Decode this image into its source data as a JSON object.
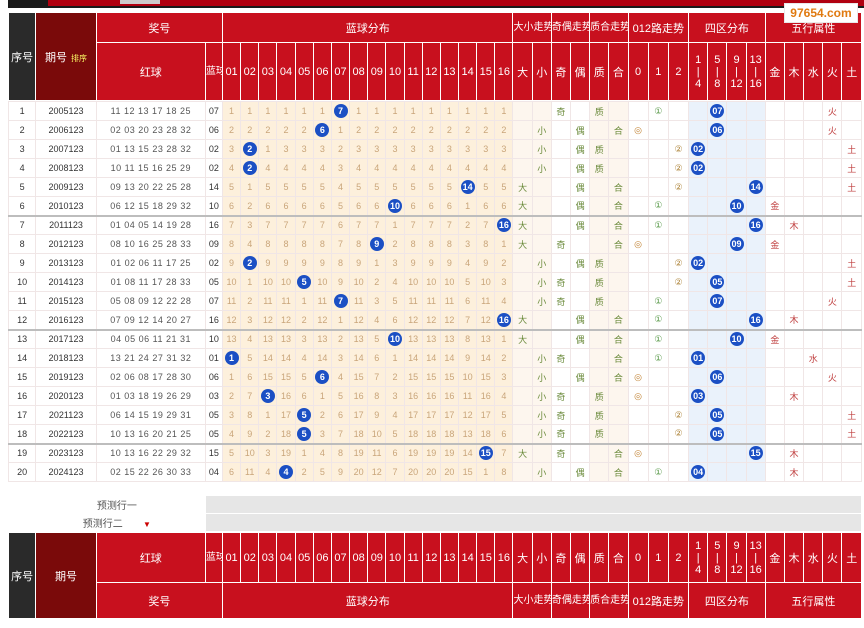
{
  "watermark": "97654.com",
  "header": {
    "seq": "序号",
    "period": "期号",
    "sort": "排序",
    "prize": "奖号",
    "red": "红球",
    "blue": "蓝球",
    "blue_dist": "蓝球分布",
    "bigsmall": "大小走势",
    "oddeven": "奇偶走势",
    "primecomp": "质合走势",
    "route012": "012路走势",
    "zone": "四区分布",
    "wuxing": "五行属性",
    "nums": [
      "01",
      "02",
      "03",
      "04",
      "05",
      "06",
      "07",
      "08",
      "09",
      "10",
      "11",
      "12",
      "13",
      "14",
      "15",
      "16"
    ],
    "dx": [
      "大",
      "小"
    ],
    "jo": [
      "奇",
      "偶"
    ],
    "zh": [
      "质",
      "合"
    ],
    "r012": [
      "0",
      "1",
      "2"
    ],
    "zones": [
      "1|4",
      "5|8",
      "9|12",
      "13|16"
    ],
    "wx": [
      "金",
      "木",
      "水",
      "火",
      "土"
    ]
  },
  "rows": [
    {
      "seq": "1",
      "period": "2005123",
      "red": "11 12 13 17 18 25",
      "blue": "07",
      "dist": [
        "1",
        "1",
        "1",
        "1",
        "1",
        "1",
        "7",
        "1",
        "1",
        "1",
        "1",
        "1",
        "1",
        "1",
        "1",
        "1"
      ],
      "dx": [
        "",
        ""
      ],
      "jo": [
        "奇",
        ""
      ],
      "zh": [
        "质",
        ""
      ],
      "r012": [
        "",
        "①",
        ""
      ],
      "zone": [
        "",
        "07",
        "",
        ""
      ],
      "wx": [
        "",
        "",
        "",
        "火",
        ""
      ]
    },
    {
      "seq": "2",
      "period": "2006123",
      "red": "02 03 20 23 28 32",
      "blue": "06",
      "dist": [
        "2",
        "2",
        "2",
        "2",
        "2",
        "6",
        "1",
        "2",
        "2",
        "2",
        "2",
        "2",
        "2",
        "2",
        "2",
        "2"
      ],
      "dx": [
        "",
        "小"
      ],
      "jo": [
        "",
        "偶"
      ],
      "zh": [
        "",
        "合"
      ],
      "r012": [
        "◎",
        "",
        ""
      ],
      "zone": [
        "",
        "06",
        "",
        ""
      ],
      "wx": [
        "",
        "",
        "",
        "火",
        ""
      ]
    },
    {
      "seq": "3",
      "period": "2007123",
      "red": "01 13 15 23 28 32",
      "blue": "02",
      "dist": [
        "3",
        "2",
        "1",
        "3",
        "3",
        "3",
        "2",
        "3",
        "3",
        "3",
        "3",
        "3",
        "3",
        "3",
        "3",
        "3"
      ],
      "dx": [
        "",
        "小"
      ],
      "jo": [
        "",
        "偶"
      ],
      "zh": [
        "质",
        ""
      ],
      "r012": [
        "",
        "",
        "②"
      ],
      "zone": [
        "02",
        "",
        "",
        ""
      ],
      "wx": [
        "",
        "",
        "",
        "",
        "土"
      ]
    },
    {
      "seq": "4",
      "period": "2008123",
      "red": "10 11 15 16 25 29",
      "blue": "02",
      "dist": [
        "4",
        "2",
        "4",
        "4",
        "4",
        "4",
        "3",
        "4",
        "4",
        "4",
        "4",
        "4",
        "4",
        "4",
        "4",
        "4"
      ],
      "dx": [
        "",
        "小"
      ],
      "jo": [
        "",
        "偶"
      ],
      "zh": [
        "质",
        ""
      ],
      "r012": [
        "",
        "",
        "②"
      ],
      "zone": [
        "02",
        "",
        "",
        ""
      ],
      "wx": [
        "",
        "",
        "",
        "",
        "土"
      ]
    },
    {
      "seq": "5",
      "period": "2009123",
      "red": "09 13 20 22 25 28",
      "blue": "14",
      "dist": [
        "5",
        "1",
        "5",
        "5",
        "5",
        "5",
        "4",
        "5",
        "5",
        "5",
        "5",
        "5",
        "5",
        "14",
        "5",
        "5"
      ],
      "dx": [
        "大",
        ""
      ],
      "jo": [
        "",
        "偶"
      ],
      "zh": [
        "",
        "合"
      ],
      "r012": [
        "",
        "",
        "②"
      ],
      "zone": [
        "",
        "",
        "",
        "14"
      ],
      "wx": [
        "",
        "",
        "",
        "",
        "土"
      ]
    },
    {
      "seq": "6",
      "period": "2010123",
      "red": "06 12 15 18 29 32",
      "blue": "10",
      "dist": [
        "6",
        "2",
        "6",
        "6",
        "6",
        "6",
        "5",
        "6",
        "6",
        "10",
        "6",
        "6",
        "6",
        "1",
        "6",
        "6"
      ],
      "dx": [
        "大",
        ""
      ],
      "jo": [
        "",
        "偶"
      ],
      "zh": [
        "",
        "合"
      ],
      "r012": [
        "",
        "①",
        ""
      ],
      "zone": [
        "",
        "",
        "10",
        ""
      ],
      "wx": [
        "金",
        "",
        "",
        "",
        ""
      ]
    },
    {
      "seq": "7",
      "period": "2011123",
      "red": "01 04 05 14 19 28",
      "blue": "16",
      "dist": [
        "7",
        "3",
        "7",
        "7",
        "7",
        "7",
        "6",
        "7",
        "7",
        "1",
        "7",
        "7",
        "7",
        "2",
        "7",
        "16"
      ],
      "dx": [
        "大",
        ""
      ],
      "jo": [
        "",
        "偶"
      ],
      "zh": [
        "",
        "合"
      ],
      "r012": [
        "",
        "①",
        ""
      ],
      "zone": [
        "",
        "",
        "",
        "16"
      ],
      "wx": [
        "",
        "木",
        "",
        "",
        ""
      ]
    },
    {
      "seq": "8",
      "period": "2012123",
      "red": "08 10 16 25 28 33",
      "blue": "09",
      "dist": [
        "8",
        "4",
        "8",
        "8",
        "8",
        "8",
        "7",
        "8",
        "9",
        "2",
        "8",
        "8",
        "8",
        "3",
        "8",
        "1"
      ],
      "dx": [
        "大",
        ""
      ],
      "jo": [
        "奇",
        ""
      ],
      "zh": [
        "",
        "合"
      ],
      "r012": [
        "◎",
        "",
        ""
      ],
      "zone": [
        "",
        "",
        "09",
        ""
      ],
      "wx": [
        "金",
        "",
        "",
        "",
        ""
      ]
    },
    {
      "seq": "9",
      "period": "2013123",
      "red": "01 02 06 11 17 25",
      "blue": "02",
      "dist": [
        "9",
        "2",
        "9",
        "9",
        "9",
        "9",
        "8",
        "9",
        "1",
        "3",
        "9",
        "9",
        "9",
        "4",
        "9",
        "2"
      ],
      "dx": [
        "",
        "小"
      ],
      "jo": [
        "",
        "偶"
      ],
      "zh": [
        "质",
        ""
      ],
      "r012": [
        "",
        "",
        "②"
      ],
      "zone": [
        "02",
        "",
        "",
        ""
      ],
      "wx": [
        "",
        "",
        "",
        "",
        "土"
      ]
    },
    {
      "seq": "10",
      "period": "2014123",
      "red": "01 08 11 17 28 33",
      "blue": "05",
      "dist": [
        "10",
        "1",
        "10",
        "10",
        "5",
        "10",
        "9",
        "10",
        "2",
        "4",
        "10",
        "10",
        "10",
        "5",
        "10",
        "3"
      ],
      "dx": [
        "",
        "小"
      ],
      "jo": [
        "奇",
        ""
      ],
      "zh": [
        "质",
        ""
      ],
      "r012": [
        "",
        "",
        "②"
      ],
      "zone": [
        "",
        "05",
        "",
        ""
      ],
      "wx": [
        "",
        "",
        "",
        "",
        "土"
      ]
    },
    {
      "seq": "11",
      "period": "2015123",
      "red": "05 08 09 12 22 28",
      "blue": "07",
      "dist": [
        "11",
        "2",
        "11",
        "11",
        "1",
        "11",
        "7",
        "11",
        "3",
        "5",
        "11",
        "11",
        "11",
        "6",
        "11",
        "4"
      ],
      "dx": [
        "",
        "小"
      ],
      "jo": [
        "奇",
        ""
      ],
      "zh": [
        "质",
        ""
      ],
      "r012": [
        "",
        "①",
        ""
      ],
      "zone": [
        "",
        "07",
        "",
        ""
      ],
      "wx": [
        "",
        "",
        "",
        "火",
        ""
      ]
    },
    {
      "seq": "12",
      "period": "2016123",
      "red": "07 09 12 14 20 27",
      "blue": "16",
      "dist": [
        "12",
        "3",
        "12",
        "12",
        "2",
        "12",
        "1",
        "12",
        "4",
        "6",
        "12",
        "12",
        "12",
        "7",
        "12",
        "16"
      ],
      "dx": [
        "大",
        ""
      ],
      "jo": [
        "",
        "偶"
      ],
      "zh": [
        "",
        "合"
      ],
      "r012": [
        "",
        "①",
        ""
      ],
      "zone": [
        "",
        "",
        "",
        "16"
      ],
      "wx": [
        "",
        "木",
        "",
        "",
        ""
      ]
    },
    {
      "seq": "13",
      "period": "2017123",
      "red": "04 05 06 11 21 31",
      "blue": "10",
      "dist": [
        "13",
        "4",
        "13",
        "13",
        "3",
        "13",
        "2",
        "13",
        "5",
        "10",
        "13",
        "13",
        "13",
        "8",
        "13",
        "1"
      ],
      "dx": [
        "大",
        ""
      ],
      "jo": [
        "",
        "偶"
      ],
      "zh": [
        "",
        "合"
      ],
      "r012": [
        "",
        "①",
        ""
      ],
      "zone": [
        "",
        "",
        "10",
        ""
      ],
      "wx": [
        "金",
        "",
        "",
        "",
        ""
      ]
    },
    {
      "seq": "14",
      "period": "2018123",
      "red": "13 21 24 27 31 32",
      "blue": "01",
      "dist": [
        "1",
        "5",
        "14",
        "14",
        "4",
        "14",
        "3",
        "14",
        "6",
        "1",
        "14",
        "14",
        "14",
        "9",
        "14",
        "2"
      ],
      "dx": [
        "",
        "小"
      ],
      "jo": [
        "奇",
        ""
      ],
      "zh": [
        "",
        "合"
      ],
      "r012": [
        "",
        "①",
        ""
      ],
      "zone": [
        "01",
        "",
        "",
        ""
      ],
      "wx": [
        "",
        "",
        "水",
        "",
        ""
      ]
    },
    {
      "seq": "15",
      "period": "2019123",
      "red": "02 06 08 17 28 30",
      "blue": "06",
      "dist": [
        "1",
        "6",
        "15",
        "15",
        "5",
        "6",
        "4",
        "15",
        "7",
        "2",
        "15",
        "15",
        "15",
        "10",
        "15",
        "3"
      ],
      "dx": [
        "",
        "小"
      ],
      "jo": [
        "",
        "偶"
      ],
      "zh": [
        "",
        "合"
      ],
      "r012": [
        "◎",
        "",
        ""
      ],
      "zone": [
        "",
        "06",
        "",
        ""
      ],
      "wx": [
        "",
        "",
        "",
        "火",
        ""
      ]
    },
    {
      "seq": "16",
      "period": "2020123",
      "red": "01 03 18 19 26 29",
      "blue": "03",
      "dist": [
        "2",
        "7",
        "3",
        "16",
        "6",
        "1",
        "5",
        "16",
        "8",
        "3",
        "16",
        "16",
        "16",
        "11",
        "16",
        "4"
      ],
      "dx": [
        "",
        "小"
      ],
      "jo": [
        "奇",
        ""
      ],
      "zh": [
        "质",
        ""
      ],
      "r012": [
        "◎",
        "",
        ""
      ],
      "zone": [
        "03",
        "",
        "",
        ""
      ],
      "wx": [
        "",
        "木",
        "",
        "",
        ""
      ]
    },
    {
      "seq": "17",
      "period": "2021123",
      "red": "06 14 15 19 29 31",
      "blue": "05",
      "dist": [
        "3",
        "8",
        "1",
        "17",
        "5",
        "2",
        "6",
        "17",
        "9",
        "4",
        "17",
        "17",
        "17",
        "12",
        "17",
        "5"
      ],
      "dx": [
        "",
        "小"
      ],
      "jo": [
        "奇",
        ""
      ],
      "zh": [
        "质",
        ""
      ],
      "r012": [
        "",
        "",
        "②"
      ],
      "zone": [
        "",
        "05",
        "",
        ""
      ],
      "wx": [
        "",
        "",
        "",
        "",
        "土"
      ]
    },
    {
      "seq": "18",
      "period": "2022123",
      "red": "10 13 16 20 21 25",
      "blue": "05",
      "dist": [
        "4",
        "9",
        "2",
        "18",
        "5",
        "3",
        "7",
        "18",
        "10",
        "5",
        "18",
        "18",
        "18",
        "13",
        "18",
        "6"
      ],
      "dx": [
        "",
        "小"
      ],
      "jo": [
        "奇",
        ""
      ],
      "zh": [
        "质",
        ""
      ],
      "r012": [
        "",
        "",
        "②"
      ],
      "zone": [
        "",
        "05",
        "",
        ""
      ],
      "wx": [
        "",
        "",
        "",
        "",
        "土"
      ]
    },
    {
      "seq": "19",
      "period": "2023123",
      "red": "10 13 16 22 29 32",
      "blue": "15",
      "dist": [
        "5",
        "10",
        "3",
        "19",
        "1",
        "4",
        "8",
        "19",
        "11",
        "6",
        "19",
        "19",
        "19",
        "14",
        "15",
        "7"
      ],
      "dx": [
        "大",
        ""
      ],
      "jo": [
        "奇",
        ""
      ],
      "zh": [
        "",
        "合"
      ],
      "r012": [
        "◎",
        "",
        ""
      ],
      "zone": [
        "",
        "",
        "",
        "15"
      ],
      "wx": [
        "",
        "木",
        "",
        "",
        ""
      ]
    },
    {
      "seq": "20",
      "period": "2024123",
      "red": "02 15 22 26 30 33",
      "blue": "04",
      "dist": [
        "6",
        "11",
        "4",
        "4",
        "2",
        "5",
        "9",
        "20",
        "12",
        "7",
        "20",
        "20",
        "20",
        "15",
        "1",
        "8"
      ],
      "dx": [
        "",
        "小"
      ],
      "jo": [
        "",
        "偶"
      ],
      "zh": [
        "",
        "合"
      ],
      "r012": [
        "",
        "①",
        ""
      ],
      "zone": [
        "04",
        "",
        "",
        ""
      ],
      "wx": [
        "",
        "木",
        "",
        "",
        ""
      ]
    }
  ],
  "predict": [
    "预测行一",
    "预测行二"
  ]
}
